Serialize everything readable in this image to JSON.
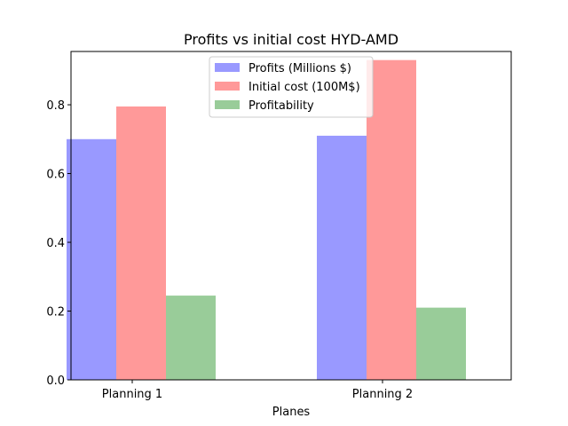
{
  "chart_data": {
    "type": "bar",
    "title": "Profits vs initial cost HYD-AMD",
    "xlabel": "Planes",
    "ylabel": "",
    "categories": [
      "Planning 1",
      "Planning 2"
    ],
    "series": [
      {
        "name": "Profits (Millions $)",
        "values": [
          0.7,
          0.71
        ],
        "color": "#9999ff"
      },
      {
        "name": "Initial cost (100M$)",
        "values": [
          0.795,
          0.93
        ],
        "color": "#ff9999"
      },
      {
        "name": "Profitability",
        "values": [
          0.245,
          0.21
        ],
        "color": "#99cc99"
      }
    ],
    "ylim": [
      0,
      0.955
    ],
    "yticks": [
      "0.0",
      "0.2",
      "0.4",
      "0.6",
      "0.8"
    ],
    "legend_position": "upper center",
    "grid": false
  }
}
